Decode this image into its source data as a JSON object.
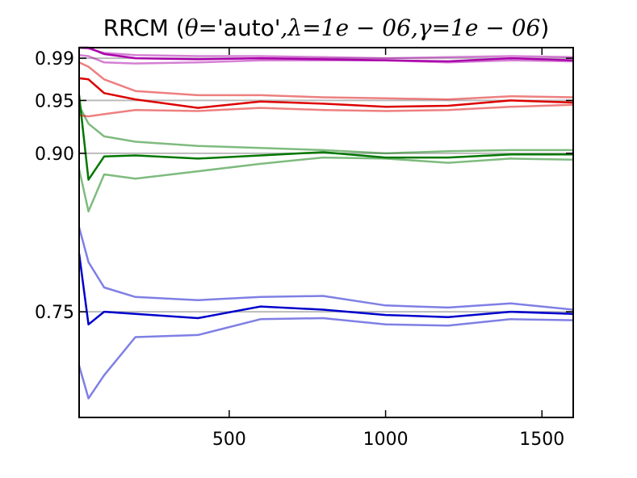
{
  "chart_data": {
    "type": "line",
    "title": {
      "prefix": "RRCM (",
      "theta": "θ",
      "eq1": "=",
      "auto": "'auto'",
      "c1": ",",
      "lambda": "λ",
      "eq2": "=",
      "lambda_val": "1e − 06",
      "c2": ",",
      "gamma": "γ",
      "eq3": "=",
      "gamma_val": "1e − 06",
      "suffix": ")"
    },
    "xlabel": "",
    "ylabel": "",
    "xlim": [
      20,
      1600
    ],
    "ylim": [
      0.65,
      1.0
    ],
    "x_ticks": [
      500,
      1000,
      1500
    ],
    "x_tick_labels": [
      "500",
      "1000",
      "1500"
    ],
    "y_ticks": [
      0.75,
      0.9,
      0.95,
      0.99
    ],
    "y_tick_labels": [
      "0.75",
      "0.90",
      "0.95",
      "0.99"
    ],
    "grid": false,
    "reference_lines": [
      0.75,
      0.9,
      0.95,
      0.99
    ],
    "reference_color": "#bbbbbb",
    "series": [
      {
        "role": "bound",
        "color": "#0000cc",
        "opacity": 0.5,
        "points": [
          [
            20,
            0.83
          ],
          [
            50,
            0.797
          ],
          [
            100,
            0.773
          ],
          [
            200,
            0.764
          ],
          [
            400,
            0.761
          ],
          [
            600,
            0.764
          ],
          [
            800,
            0.765
          ],
          [
            1000,
            0.756
          ],
          [
            1200,
            0.754
          ],
          [
            1400,
            0.758
          ],
          [
            1600,
            0.752
          ]
        ]
      },
      {
        "role": "mean",
        "color": "#0000cc",
        "opacity": 1,
        "points": [
          [
            20,
            0.805
          ],
          [
            50,
            0.738
          ],
          [
            100,
            0.75
          ],
          [
            200,
            0.748
          ],
          [
            400,
            0.744
          ],
          [
            600,
            0.755
          ],
          [
            800,
            0.752
          ],
          [
            1000,
            0.747
          ],
          [
            1200,
            0.745
          ],
          [
            1400,
            0.75
          ],
          [
            1600,
            0.748
          ]
        ]
      },
      {
        "role": "bound",
        "color": "#0000cc",
        "opacity": 0.5,
        "points": [
          [
            20,
            0.699
          ],
          [
            50,
            0.668
          ],
          [
            100,
            0.69
          ],
          [
            200,
            0.726
          ],
          [
            400,
            0.728
          ],
          [
            600,
            0.743
          ],
          [
            800,
            0.744
          ],
          [
            1000,
            0.738
          ],
          [
            1200,
            0.737
          ],
          [
            1400,
            0.743
          ],
          [
            1600,
            0.742
          ]
        ]
      },
      {
        "role": "bound",
        "color": "#007700",
        "opacity": 0.5,
        "points": [
          [
            20,
            0.945
          ],
          [
            50,
            0.928
          ],
          [
            100,
            0.916
          ],
          [
            200,
            0.911
          ],
          [
            400,
            0.907
          ],
          [
            600,
            0.905
          ],
          [
            800,
            0.903
          ],
          [
            1000,
            0.9
          ],
          [
            1200,
            0.902
          ],
          [
            1400,
            0.903
          ],
          [
            1600,
            0.903
          ]
        ]
      },
      {
        "role": "mean",
        "color": "#007700",
        "opacity": 1,
        "points": [
          [
            20,
            0.955
          ],
          [
            50,
            0.875
          ],
          [
            100,
            0.897
          ],
          [
            200,
            0.898
          ],
          [
            400,
            0.895
          ],
          [
            600,
            0.898
          ],
          [
            800,
            0.901
          ],
          [
            1000,
            0.896
          ],
          [
            1200,
            0.896
          ],
          [
            1400,
            0.899
          ],
          [
            1600,
            0.899
          ]
        ]
      },
      {
        "role": "bound",
        "color": "#007700",
        "opacity": 0.5,
        "points": [
          [
            20,
            0.885
          ],
          [
            50,
            0.845
          ],
          [
            100,
            0.88
          ],
          [
            200,
            0.876
          ],
          [
            400,
            0.883
          ],
          [
            600,
            0.89
          ],
          [
            800,
            0.896
          ],
          [
            1000,
            0.895
          ],
          [
            1200,
            0.891
          ],
          [
            1400,
            0.895
          ],
          [
            1600,
            0.894
          ]
        ]
      },
      {
        "role": "bound",
        "color": "#dd0000",
        "opacity": 0.5,
        "points": [
          [
            20,
            0.986
          ],
          [
            50,
            0.982
          ],
          [
            100,
            0.97
          ],
          [
            200,
            0.959
          ],
          [
            400,
            0.955
          ],
          [
            600,
            0.955
          ],
          [
            800,
            0.953
          ],
          [
            1000,
            0.952
          ],
          [
            1200,
            0.951
          ],
          [
            1400,
            0.954
          ],
          [
            1600,
            0.953
          ]
        ]
      },
      {
        "role": "mean",
        "color": "#dd0000",
        "opacity": 1,
        "points": [
          [
            20,
            0.971
          ],
          [
            50,
            0.97
          ],
          [
            100,
            0.957
          ],
          [
            200,
            0.951
          ],
          [
            400,
            0.943
          ],
          [
            600,
            0.949
          ],
          [
            800,
            0.947
          ],
          [
            1000,
            0.944
          ],
          [
            1200,
            0.945
          ],
          [
            1400,
            0.95
          ],
          [
            1600,
            0.948
          ]
        ]
      },
      {
        "role": "bound",
        "color": "#dd0000",
        "opacity": 0.5,
        "points": [
          [
            20,
            0.936
          ],
          [
            50,
            0.935
          ],
          [
            100,
            0.937
          ],
          [
            200,
            0.941
          ],
          [
            400,
            0.94
          ],
          [
            600,
            0.943
          ],
          [
            800,
            0.941
          ],
          [
            1000,
            0.94
          ],
          [
            1200,
            0.941
          ],
          [
            1400,
            0.944
          ],
          [
            1600,
            0.946
          ]
        ]
      },
      {
        "role": "bound",
        "color": "#aa00aa",
        "opacity": 0.5,
        "points": [
          [
            20,
            1.0
          ],
          [
            50,
            0.999
          ],
          [
            100,
            0.995
          ],
          [
            200,
            0.993
          ],
          [
            400,
            0.992
          ],
          [
            600,
            0.992
          ],
          [
            800,
            0.991
          ],
          [
            1000,
            0.99
          ],
          [
            1200,
            0.991
          ],
          [
            1400,
            0.992
          ],
          [
            1600,
            0.991
          ]
        ]
      },
      {
        "role": "mean",
        "color": "#aa00aa",
        "opacity": 1,
        "points": [
          [
            20,
            1.0
          ],
          [
            50,
            1.0
          ],
          [
            100,
            0.994
          ],
          [
            200,
            0.99
          ],
          [
            400,
            0.989
          ],
          [
            600,
            0.99
          ],
          [
            800,
            0.989
          ],
          [
            1000,
            0.988
          ],
          [
            1200,
            0.987
          ],
          [
            1400,
            0.99
          ],
          [
            1600,
            0.988
          ]
        ]
      },
      {
        "role": "bound",
        "color": "#aa00aa",
        "opacity": 0.5,
        "points": [
          [
            20,
            0.993
          ],
          [
            50,
            0.992
          ],
          [
            100,
            0.986
          ],
          [
            200,
            0.985
          ],
          [
            400,
            0.986
          ],
          [
            600,
            0.988
          ],
          [
            800,
            0.988
          ],
          [
            1000,
            0.988
          ],
          [
            1200,
            0.986
          ],
          [
            1400,
            0.988
          ],
          [
            1600,
            0.987
          ]
        ]
      }
    ]
  }
}
